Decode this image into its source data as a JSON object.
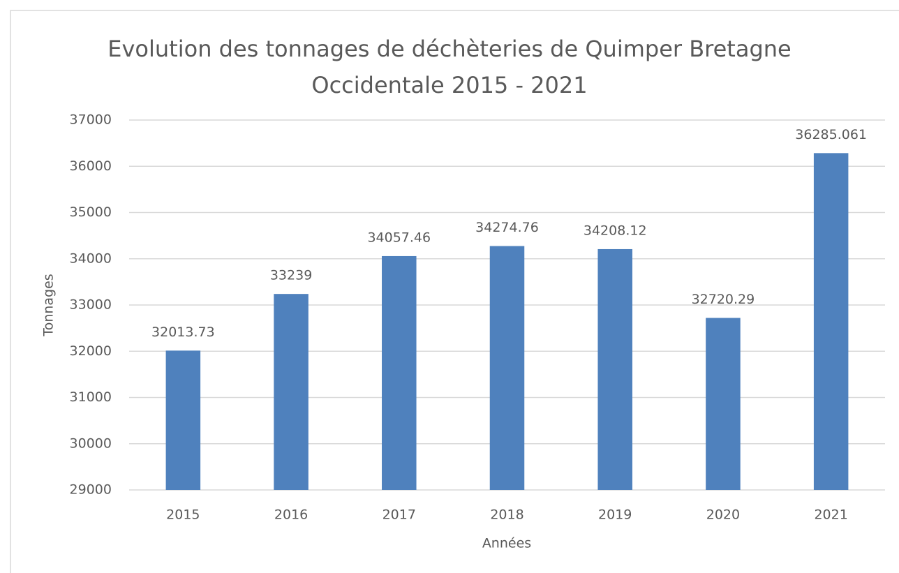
{
  "chart_data": {
    "type": "bar",
    "title": "Evolution des tonnages de déchèteries de Quimper Bretagne Occidentale 2015 - 2021",
    "x_label": "Années",
    "y_label": "Tonnages",
    "categories": [
      "2015",
      "2016",
      "2017",
      "2018",
      "2019",
      "2020",
      "2021"
    ],
    "values": [
      32013.73,
      33239,
      34057.46,
      34274.76,
      34208.12,
      32720.29,
      36285.061
    ],
    "color": "#4f81bd",
    "ylim": [
      29000,
      37000
    ],
    "yticks": [
      29000,
      30000,
      31000,
      32000,
      33000,
      34000,
      35000,
      36000,
      37000
    ],
    "grid": true
  }
}
